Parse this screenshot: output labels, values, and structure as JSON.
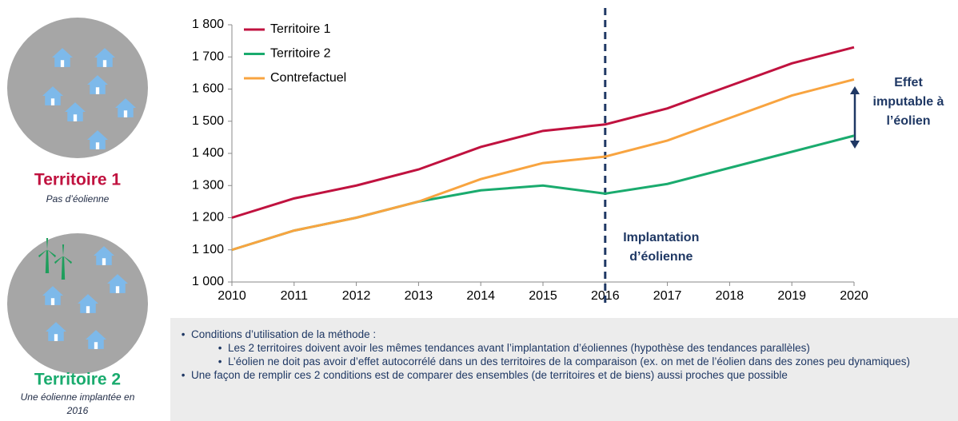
{
  "chart_data": {
    "type": "line",
    "x": [
      2010,
      2011,
      2012,
      2013,
      2014,
      2015,
      2016,
      2017,
      2018,
      2019,
      2020
    ],
    "xlim": [
      2010,
      2020
    ],
    "xticks": [
      2010,
      2011,
      2012,
      2013,
      2014,
      2015,
      2016,
      2017,
      2018,
      2019,
      2020
    ],
    "ylim": [
      1000,
      1800
    ],
    "yticks": [
      {
        "value": 1000,
        "label": "1 000"
      },
      {
        "value": 1100,
        "label": "1 100"
      },
      {
        "value": 1200,
        "label": "1 200"
      },
      {
        "value": 1300,
        "label": "1 300"
      },
      {
        "value": 1400,
        "label": "1 400"
      },
      {
        "value": 1500,
        "label": "1 500"
      },
      {
        "value": 1600,
        "label": "1 600"
      },
      {
        "value": 1700,
        "label": "1 700"
      },
      {
        "value": 1800,
        "label": "1 800"
      }
    ],
    "series": [
      {
        "name": "Territoire 1",
        "color": "#c0123f",
        "values": [
          1200,
          1260,
          1300,
          1350,
          1420,
          1470,
          1490,
          1540,
          1610,
          1680,
          1730
        ]
      },
      {
        "name": "Territoire 2",
        "color": "#1aab6e",
        "values": [
          1100,
          1160,
          1200,
          1250,
          1285,
          1300,
          1275,
          1305,
          1355,
          1405,
          1455
        ]
      },
      {
        "name": "Contrefactuel",
        "color": "#f8a440",
        "values": [
          1100,
          1160,
          1200,
          1250,
          1320,
          1370,
          1390,
          1440,
          1510,
          1580,
          1630
        ]
      }
    ],
    "event_x": 2016,
    "event_label": [
      "Implantation",
      "d’éolienne"
    ],
    "effect_label": [
      "Effet",
      "imputable à",
      "l’éolien"
    ]
  },
  "left_panel": {
    "territory_1": {
      "title": "Territoire 1",
      "subtitle": "Pas d’éolienne"
    },
    "territory_2": {
      "title": "Territoire 2",
      "subtitle": [
        "Une éolienne implantée en",
        "2016"
      ]
    }
  },
  "notes": {
    "bullet_1": "Conditions d’utilisation de la méthode :",
    "sub_bullets": [
      "Les 2 territoires doivent avoir les mêmes tendances avant l’implantation d’éoliennes (hypothèse des tendances parallèles)",
      "L’éolien ne doit pas avoir d’effet autocorrélé dans un des territoires de la comparaison (ex. on met de l’éolien dans des zones peu dynamiques)"
    ],
    "bullet_2": "Une façon de remplir ces 2 conditions est de comparer des ensembles (de territoires et de biens) aussi proches que possible"
  }
}
